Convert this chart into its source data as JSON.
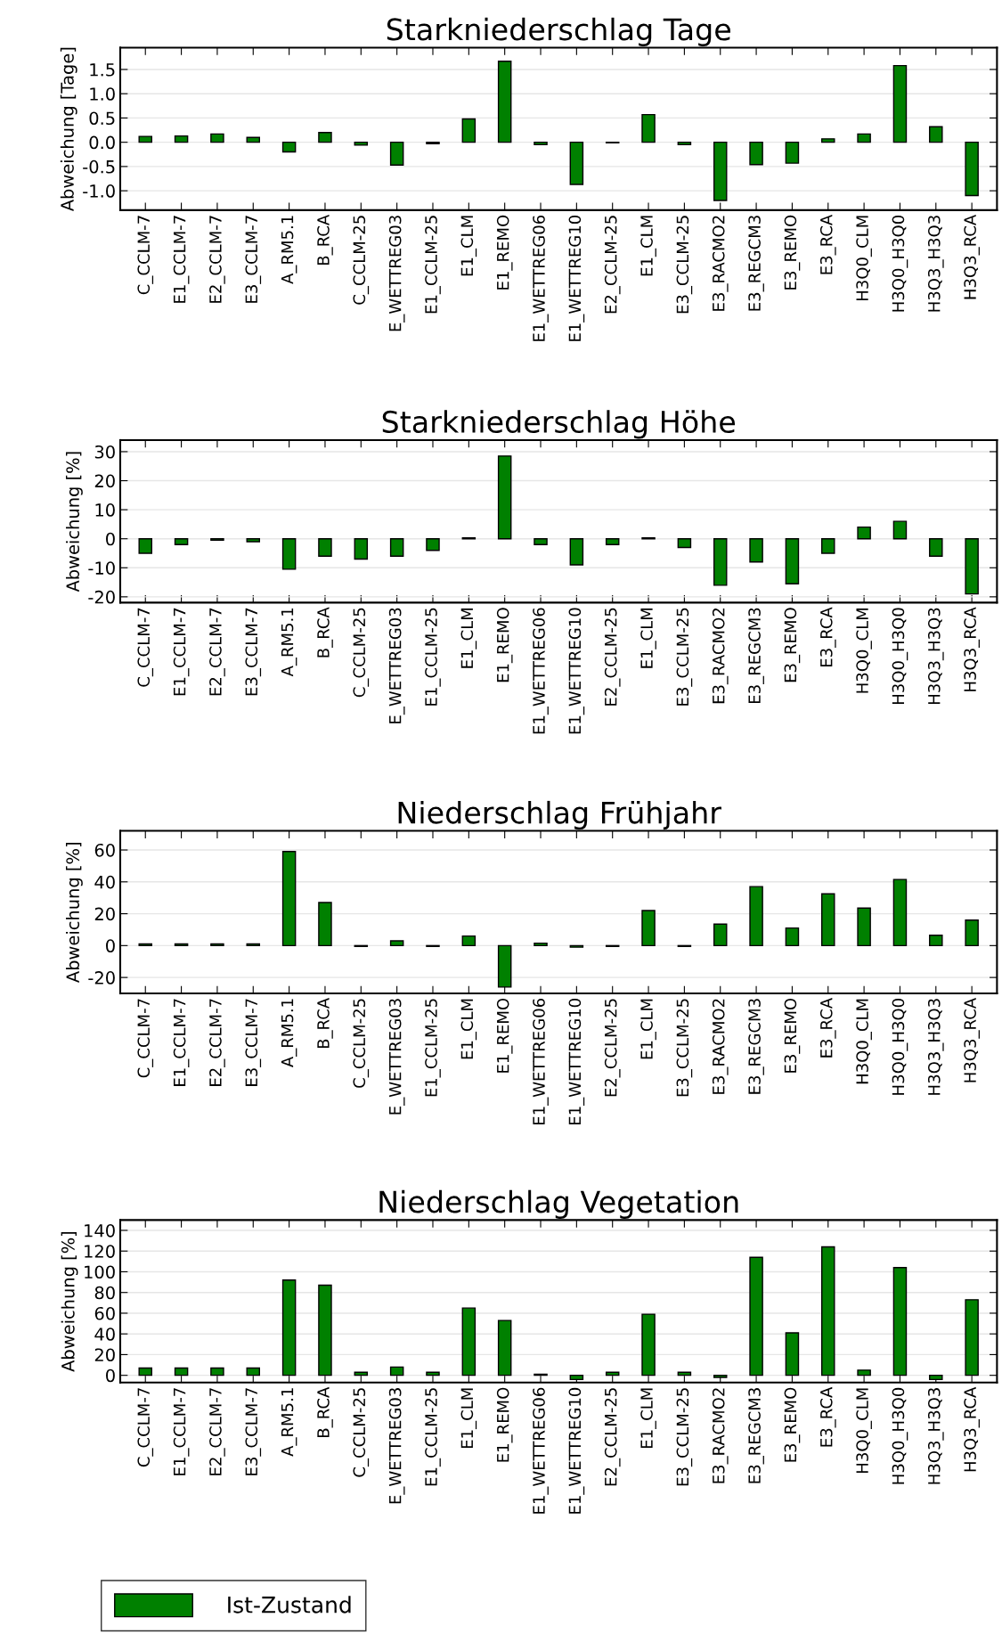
{
  "chart_data": [
    {
      "type": "bar",
      "title": "Starkniederschlag Tage",
      "ylabel": "Abweichung [Tage]",
      "categories": [
        "C_CCLM-7",
        "E1_CCLM-7",
        "E2_CCLM-7",
        "E3_CCLM-7",
        "A_RM5.1",
        "B_RCA",
        "C_CCLM-25",
        "E_WETTREG03",
        "E1_CCLM-25",
        "E1_CLM",
        "E1_REMO",
        "E1_WETTREG06",
        "E1_WETTREG10",
        "E2_CCLM-25",
        "E1_CLM",
        "E3_CCLM-25",
        "E3_RACMO2",
        "E3_REGCM3",
        "E3_REMO",
        "E3_RCA",
        "H3Q0_CLM",
        "H3Q0_H3Q0",
        "H3Q3_H3Q3",
        "H3Q3_RCA"
      ],
      "series": [
        {
          "color": "#008000",
          "values": [
            0.12,
            0.13,
            0.17,
            0.1,
            -0.2,
            0.2,
            -0.06,
            -0.47,
            -0.03,
            0.48,
            1.67,
            -0.05,
            -0.87,
            -0.01,
            0.57,
            -0.05,
            -1.2,
            -0.46,
            -0.43,
            0.07,
            0.17,
            1.58,
            0.32,
            -1.1
          ]
        }
      ],
      "ylim": [
        -1.4,
        1.95
      ],
      "yticks": [
        {
          "value": -1.0,
          "label": "-1.0"
        },
        -0.5,
        {
          "value": 0,
          "label": "0.0"
        },
        0.5,
        {
          "value": 1,
          "label": "1.0"
        },
        1.5
      ],
      "grid": "y"
    },
    {
      "type": "bar",
      "title": "Starkniederschlag Höhe",
      "ylabel": "Abweichung [%]",
      "categories": [
        "C_CCLM-7",
        "E1_CCLM-7",
        "E2_CCLM-7",
        "E3_CCLM-7",
        "A_RM5.1",
        "B_RCA",
        "C_CCLM-25",
        "E_WETTREG03",
        "E1_CCLM-25",
        "E1_CLM",
        "E1_REMO",
        "E1_WETTREG06",
        "E1_WETTREG10",
        "E2_CCLM-25",
        "E1_CLM",
        "E3_CCLM-25",
        "E3_RACMO2",
        "E3_REGCM3",
        "E3_REMO",
        "E3_RCA",
        "H3Q0_CLM",
        "H3Q0_H3Q0",
        "H3Q3_H3Q3",
        "H3Q3_RCA"
      ],
      "series": [
        {
          "color": "#008000",
          "values": [
            -5,
            -2,
            -0.5,
            -1,
            -10.5,
            -6,
            -7,
            -6,
            -4,
            0.3,
            28.5,
            -2,
            -9,
            -2,
            0.3,
            -3,
            -16,
            -8,
            -15.5,
            -5,
            4,
            6,
            -6,
            -19
          ]
        }
      ],
      "ylim": [
        -22,
        34
      ],
      "yticks": [
        -20,
        -10,
        0,
        10,
        20,
        30
      ],
      "grid": "y"
    },
    {
      "type": "bar",
      "title": "Niederschlag Frühjahr",
      "ylabel": "Abweichung [%]",
      "categories": [
        "C_CCLM-7",
        "E1_CCLM-7",
        "E2_CCLM-7",
        "E3_CCLM-7",
        "A_RM5.1",
        "B_RCA",
        "C_CCLM-25",
        "E_WETTREG03",
        "E1_CCLM-25",
        "E1_CLM",
        "E1_REMO",
        "E1_WETTREG06",
        "E1_WETTREG10",
        "E2_CCLM-25",
        "E1_CLM",
        "E3_CCLM-25",
        "E3_RACMO2",
        "E3_REGCM3",
        "E3_REMO",
        "E3_RCA",
        "H3Q0_CLM",
        "H3Q0_H3Q0",
        "H3Q3_H3Q3",
        "H3Q3_RCA"
      ],
      "series": [
        {
          "color": "#008000",
          "values": [
            1,
            1,
            1,
            1,
            59,
            27,
            -0.5,
            3,
            -0.5,
            6,
            -26,
            1.5,
            -1,
            -0.5,
            22,
            -0.5,
            13.5,
            37,
            11,
            32.5,
            23.5,
            41.5,
            6.5,
            16
          ]
        }
      ],
      "ylim": [
        -30,
        72
      ],
      "yticks": [
        -20,
        0,
        20,
        40,
        60
      ],
      "grid": "y"
    },
    {
      "type": "bar",
      "title": "Niederschlag Vegetation",
      "ylabel": "Abweichung [%]",
      "categories": [
        "C_CCLM-7",
        "E1_CCLM-7",
        "E2_CCLM-7",
        "E3_CCLM-7",
        "A_RM5.1",
        "B_RCA",
        "C_CCLM-25",
        "E_WETTREG03",
        "E1_CCLM-25",
        "E1_CLM",
        "E1_REMO",
        "E1_WETTREG06",
        "E1_WETTREG10",
        "E2_CCLM-25",
        "E1_CLM",
        "E3_CCLM-25",
        "E3_RACMO2",
        "E3_REGCM3",
        "E3_REMO",
        "E3_RCA",
        "H3Q0_CLM",
        "H3Q0_H3Q0",
        "H3Q3_H3Q3",
        "H3Q3_RCA"
      ],
      "series": [
        {
          "name": "Ist-Zustand",
          "color": "#008000",
          "values": [
            7,
            7,
            7,
            7,
            92,
            87,
            3,
            8,
            3,
            65,
            53,
            1,
            -4,
            3,
            59,
            3,
            -2,
            114,
            41,
            124,
            5,
            104,
            -4,
            73
          ]
        }
      ],
      "ylim": [
        -7,
        150
      ],
      "yticks": [
        0,
        20,
        40,
        60,
        80,
        100,
        120,
        140
      ],
      "grid": "y",
      "legend": "bottom left"
    }
  ]
}
